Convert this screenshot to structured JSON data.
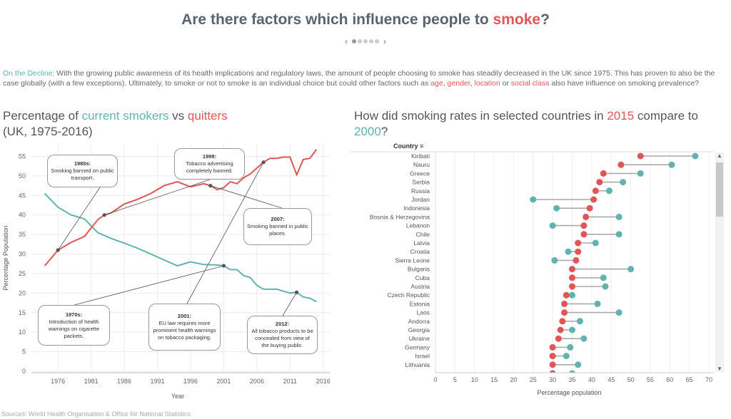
{
  "header": {
    "title_pre": "Are there factors which influence people to ",
    "title_hl": "smoke",
    "title_post": "?"
  },
  "intro": {
    "lead": "On the Decline:",
    "text1": " With the growing public awareness of its health implications and regulatory laws, the amount of people choosing to smoke has steadily decreased in the UK since 1975. This has proven to also be the case globally (with a few exceptions). Ultimately, to smoke or not to smoke is an individual choice but could other factors such as ",
    "age": "age",
    "c1": ", ",
    "gender": "gender",
    "c2": ", ",
    "location": "location",
    "c3": " or ",
    "social": "social class",
    "text2": " also have influence on smoking prevalence?"
  },
  "left": {
    "t1": "Percentage of ",
    "t_current": "current smokers",
    "t_vs": " vs ",
    "t_quit": "quitters",
    "t2": "(UK, 1975-2016)"
  },
  "right": {
    "t1": "How did smoking rates in selected countries in ",
    "t_2015": "2015",
    "t2": " compare to ",
    "t_2000": "2000",
    "t3": "?",
    "column_header": "Country"
  },
  "source": "Sources: World Health Organisation & Office for National Statistics",
  "colors": {
    "teal": "#5fb4ad",
    "red": "#e05555"
  },
  "annotations": [
    {
      "title": "1980s:",
      "text": "Smoking banned on public transport."
    },
    {
      "title": "1999:",
      "text": "Tobacco advertising completely banned."
    },
    {
      "title": "2007:",
      "text": "Smoking banned in public places."
    },
    {
      "title": "1970s:",
      "text": "Introduction of health warnings on cigarette packets."
    },
    {
      "title": "2001:",
      "text": "EU law requires more prominent health warnings on tobacco packaging."
    },
    {
      "title": "2012:",
      "text": "All tobacco products to be concealed from view of the buying public."
    }
  ],
  "chart_data": [
    {
      "type": "line",
      "title": "Percentage of current smokers vs quitters (UK, 1975-2016)",
      "xlabel": "Year",
      "ylabel": "Percentage Population",
      "xlim": [
        1972,
        2017
      ],
      "ylim": [
        0,
        58
      ],
      "xticks": [
        1976,
        1981,
        1986,
        1991,
        1996,
        2001,
        2006,
        2011,
        2016
      ],
      "yticks": [
        0,
        5,
        10,
        15,
        20,
        25,
        30,
        35,
        40,
        45,
        50,
        55
      ],
      "grid": true,
      "series": [
        {
          "name": "current smokers",
          "color": "#5fb4ad",
          "x": [
            1974,
            1976,
            1978,
            1980,
            1982,
            1984,
            1986,
            1988,
            1990,
            1992,
            1994,
            1996,
            1998,
            2000,
            2001,
            2002,
            2003,
            2004,
            2005,
            2006,
            2007,
            2008,
            2009,
            2010,
            2011,
            2012,
            2013,
            2014,
            2015
          ],
          "y": [
            45.5,
            42,
            40,
            39,
            35.5,
            34,
            32.8,
            31.5,
            30,
            28.5,
            27,
            28,
            27.3,
            27.2,
            27,
            26,
            26,
            24.5,
            24,
            22,
            21,
            21,
            21,
            20.5,
            20,
            20.2,
            19,
            18.7,
            17.8
          ]
        },
        {
          "name": "quitters",
          "color": "#e05555",
          "x": [
            1974,
            1976,
            1978,
            1980,
            1982,
            1983,
            1984,
            1986,
            1988,
            1990,
            1992,
            1994,
            1996,
            1998,
            1999,
            2000,
            2001,
            2002,
            2003,
            2004,
            2005,
            2006,
            2007,
            2008,
            2009,
            2010,
            2011,
            2012,
            2013,
            2014,
            2015
          ],
          "y": [
            27,
            31,
            33,
            34.5,
            38.8,
            40,
            40.5,
            42.8,
            44,
            45.5,
            47.5,
            48.5,
            47.2,
            48,
            47.5,
            46.5,
            47,
            48.5,
            48,
            49.5,
            50.5,
            52,
            53.5,
            54.5,
            54.5,
            54.8,
            54.8,
            50.3,
            54.2,
            54.5,
            56.8
          ]
        }
      ],
      "markers": [
        {
          "x": 1976,
          "y": 31
        },
        {
          "x": 1983,
          "y": 40
        },
        {
          "x": 1999,
          "y": 47.5
        },
        {
          "x": 2001,
          "y": 27
        },
        {
          "x": 2007,
          "y": 53.5
        },
        {
          "x": 2012,
          "y": 20.2
        }
      ]
    },
    {
      "type": "scatter",
      "title": "How did smoking rates in selected countries in 2015 compare to 2000?",
      "xlabel": "Percentage population",
      "ylabel": "Country",
      "xlim": [
        0,
        70
      ],
      "xticks": [
        0,
        5,
        10,
        15,
        20,
        25,
        30,
        35,
        40,
        45,
        50,
        55,
        60,
        65,
        70
      ],
      "series": [
        {
          "name": "2015",
          "color": "#e05555"
        },
        {
          "name": "2000",
          "color": "#5fb4ad"
        }
      ],
      "categories": [
        "Kiribati",
        "Nauru",
        "Greece",
        "Serbia",
        "Russia",
        "Jordan",
        "Indonesia",
        "Bosnia & Herzegovina",
        "Lebanon",
        "Chile",
        "Latvia",
        "Croatia",
        "Sierra Leone",
        "Bulgaria",
        "Cuba",
        "Austria",
        "Czech Republic",
        "Estonia",
        "Laos",
        "Andorra",
        "Georgia",
        "Ukraine",
        "Germany",
        "Israel",
        "Lithuania"
      ],
      "v2015": [
        52.5,
        47.5,
        43,
        42,
        41,
        40.5,
        39.5,
        38.5,
        38,
        38,
        36.5,
        36.5,
        36,
        35,
        35,
        35,
        33.5,
        33,
        33,
        32.5,
        32,
        31.5,
        30,
        30,
        30
      ],
      "v2000": [
        66.5,
        60.5,
        52.5,
        48,
        44.5,
        25,
        31,
        47,
        30,
        47,
        41,
        34,
        30.5,
        50,
        43,
        43.5,
        35,
        41.5,
        47,
        37,
        35,
        38,
        34.5,
        33.5,
        36.5
      ],
      "partial_next": {
        "v2015": 30,
        "v2000": 35
      }
    }
  ]
}
